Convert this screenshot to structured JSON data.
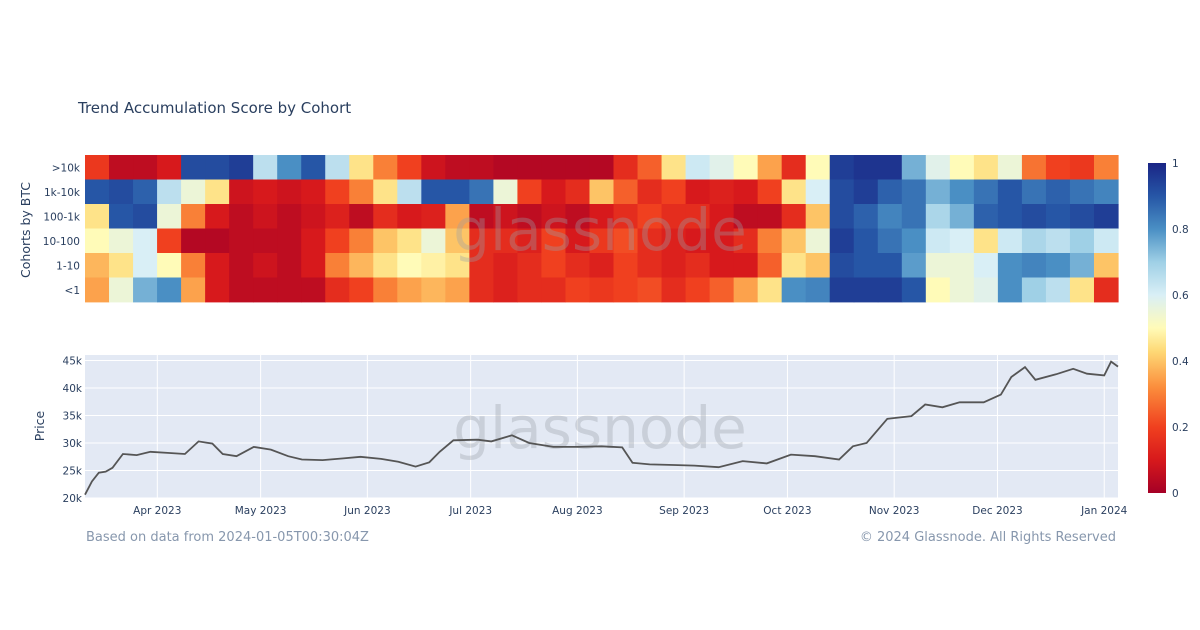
{
  "chart_data": [
    {
      "type": "heatmap",
      "title": "Trend Accumulation Score by Cohort",
      "ylabel": "Cohorts by BTC",
      "rows": [
        ">10k",
        "1k-10k",
        "100-1k",
        "10-100",
        "1-10",
        "<1"
      ],
      "x_start": "2023-03-11",
      "x_end": "2024-01-05",
      "x_step_days": 7,
      "zlim": [
        0,
        1
      ],
      "colorbar_ticks": [
        0,
        0.2,
        0.4,
        0.6,
        0.8,
        1
      ],
      "colorscale": [
        [
          0,
          "#a50026"
        ],
        [
          0.1,
          "#d7191c"
        ],
        [
          0.2,
          "#f0401f"
        ],
        [
          0.32,
          "#fb8d3c"
        ],
        [
          0.43,
          "#fed976"
        ],
        [
          0.5,
          "#fffbb8"
        ],
        [
          0.6,
          "#d9eff6"
        ],
        [
          0.7,
          "#9fd0e6"
        ],
        [
          0.8,
          "#4a8fc4"
        ],
        [
          0.9,
          "#2656a6"
        ],
        [
          1,
          "#1a2585"
        ]
      ],
      "values": [
        [
          0.18,
          0.05,
          0.05,
          0.1,
          0.92,
          0.92,
          0.95,
          0.65,
          0.8,
          0.9,
          0.65,
          0.45,
          0.3,
          0.2,
          0.08,
          0.05,
          0.05,
          0.03,
          0.03,
          0.03,
          0.03,
          0.03,
          0.15,
          0.25,
          0.45,
          0.62,
          0.58,
          0.5,
          0.35,
          0.15,
          0.5,
          0.95,
          0.97,
          0.97,
          0.75,
          0.58,
          0.5,
          0.45,
          0.55,
          0.28,
          0.2,
          0.18,
          0.3
        ],
        [
          0.9,
          0.92,
          0.88,
          0.65,
          0.55,
          0.45,
          0.08,
          0.1,
          0.08,
          0.1,
          0.2,
          0.3,
          0.45,
          0.65,
          0.9,
          0.9,
          0.85,
          0.55,
          0.2,
          0.1,
          0.15,
          0.4,
          0.25,
          0.15,
          0.2,
          0.1,
          0.12,
          0.1,
          0.2,
          0.45,
          0.6,
          0.92,
          0.95,
          0.88,
          0.85,
          0.75,
          0.8,
          0.85,
          0.9,
          0.85,
          0.88,
          0.85,
          0.82
        ],
        [
          0.45,
          0.9,
          0.92,
          0.55,
          0.3,
          0.1,
          0.05,
          0.08,
          0.05,
          0.08,
          0.12,
          0.05,
          0.15,
          0.1,
          0.12,
          0.35,
          0.05,
          0.08,
          0.05,
          0.08,
          0.05,
          0.1,
          0.15,
          0.2,
          0.15,
          0.15,
          0.1,
          0.05,
          0.05,
          0.15,
          0.4,
          0.92,
          0.88,
          0.82,
          0.85,
          0.68,
          0.75,
          0.88,
          0.9,
          0.92,
          0.9,
          0.92,
          0.95
        ],
        [
          0.5,
          0.55,
          0.6,
          0.2,
          0.03,
          0.03,
          0.05,
          0.05,
          0.05,
          0.1,
          0.2,
          0.3,
          0.4,
          0.45,
          0.55,
          0.4,
          0.15,
          0.15,
          0.12,
          0.2,
          0.1,
          0.18,
          0.22,
          0.15,
          0.12,
          0.1,
          0.1,
          0.15,
          0.3,
          0.4,
          0.55,
          0.95,
          0.9,
          0.85,
          0.8,
          0.62,
          0.6,
          0.45,
          0.62,
          0.68,
          0.65,
          0.7,
          0.62
        ],
        [
          0.38,
          0.45,
          0.6,
          0.5,
          0.3,
          0.1,
          0.05,
          0.08,
          0.05,
          0.1,
          0.3,
          0.38,
          0.45,
          0.5,
          0.48,
          0.45,
          0.15,
          0.12,
          0.15,
          0.2,
          0.15,
          0.12,
          0.2,
          0.15,
          0.12,
          0.15,
          0.1,
          0.1,
          0.25,
          0.45,
          0.4,
          0.92,
          0.9,
          0.9,
          0.78,
          0.55,
          0.55,
          0.6,
          0.8,
          0.82,
          0.8,
          0.75,
          0.4
        ],
        [
          0.35,
          0.55,
          0.75,
          0.8,
          0.35,
          0.1,
          0.05,
          0.05,
          0.05,
          0.05,
          0.15,
          0.2,
          0.3,
          0.35,
          0.38,
          0.35,
          0.15,
          0.12,
          0.15,
          0.15,
          0.2,
          0.18,
          0.2,
          0.22,
          0.15,
          0.2,
          0.25,
          0.35,
          0.45,
          0.8,
          0.82,
          0.95,
          0.95,
          0.95,
          0.9,
          0.5,
          0.55,
          0.58,
          0.8,
          0.7,
          0.65,
          0.45,
          0.15
        ]
      ]
    },
    {
      "type": "line",
      "ylabel": "Price",
      "ylim": [
        20000,
        46000
      ],
      "yticks": [
        20000,
        25000,
        30000,
        35000,
        40000,
        45000
      ],
      "ytick_labels": [
        "20k",
        "25k",
        "30k",
        "35k",
        "40k",
        "45k"
      ],
      "xticks": [
        "2023-04-01",
        "2023-05-01",
        "2023-06-01",
        "2023-07-01",
        "2023-08-01",
        "2023-09-01",
        "2023-10-01",
        "2023-11-01",
        "2023-12-01",
        "2024-01-01"
      ],
      "xtick_labels": [
        "Apr 2023",
        "May 2023",
        "Jun 2023",
        "Jul 2023",
        "Aug 2023",
        "Sep 2023",
        "Oct 2023",
        "Nov 2023",
        "Dec 2023",
        "Jan 2024"
      ],
      "x": [
        "2023-03-11",
        "2023-03-13",
        "2023-03-15",
        "2023-03-17",
        "2023-03-19",
        "2023-03-22",
        "2023-03-26",
        "2023-03-30",
        "2023-04-04",
        "2023-04-09",
        "2023-04-13",
        "2023-04-17",
        "2023-04-20",
        "2023-04-24",
        "2023-04-29",
        "2023-05-04",
        "2023-05-09",
        "2023-05-13",
        "2023-05-19",
        "2023-05-25",
        "2023-05-30",
        "2023-06-05",
        "2023-06-10",
        "2023-06-15",
        "2023-06-19",
        "2023-06-22",
        "2023-06-26",
        "2023-07-03",
        "2023-07-07",
        "2023-07-13",
        "2023-07-18",
        "2023-07-25",
        "2023-08-01",
        "2023-08-08",
        "2023-08-14",
        "2023-08-17",
        "2023-08-22",
        "2023-08-29",
        "2023-09-04",
        "2023-09-11",
        "2023-09-18",
        "2023-09-25",
        "2023-10-02",
        "2023-10-09",
        "2023-10-16",
        "2023-10-20",
        "2023-10-24",
        "2023-10-30",
        "2023-11-06",
        "2023-11-10",
        "2023-11-15",
        "2023-11-20",
        "2023-11-27",
        "2023-12-02",
        "2023-12-05",
        "2023-12-09",
        "2023-12-12",
        "2023-12-18",
        "2023-12-23",
        "2023-12-27",
        "2024-01-01",
        "2024-01-03",
        "2024-01-05"
      ],
      "y": [
        20600,
        23000,
        24600,
        24800,
        25500,
        28000,
        27800,
        28400,
        28200,
        28000,
        30300,
        29900,
        28000,
        27600,
        29300,
        28800,
        27600,
        27000,
        26900,
        27200,
        27500,
        27100,
        26600,
        25700,
        26500,
        28400,
        30500,
        30600,
        30300,
        31400,
        30000,
        29300,
        29300,
        29400,
        29200,
        26400,
        26100,
        26000,
        25900,
        25600,
        26700,
        26300,
        27900,
        27600,
        27000,
        29400,
        30000,
        34400,
        34900,
        37000,
        36500,
        37400,
        37400,
        38800,
        42000,
        43800,
        41500,
        42500,
        43500,
        42600,
        42300,
        44800,
        43900
      ]
    }
  ],
  "footer": {
    "source_note": "Based on data from 2024-01-05T00:30:04Z",
    "copyright": "© 2024 Glassnode. All Rights Reserved"
  },
  "watermark": "glassnode",
  "colors": {
    "text": "#2a3f5f",
    "plot_bg": "#e3e9f4",
    "line": "#555555",
    "footer": "#8797ad"
  }
}
